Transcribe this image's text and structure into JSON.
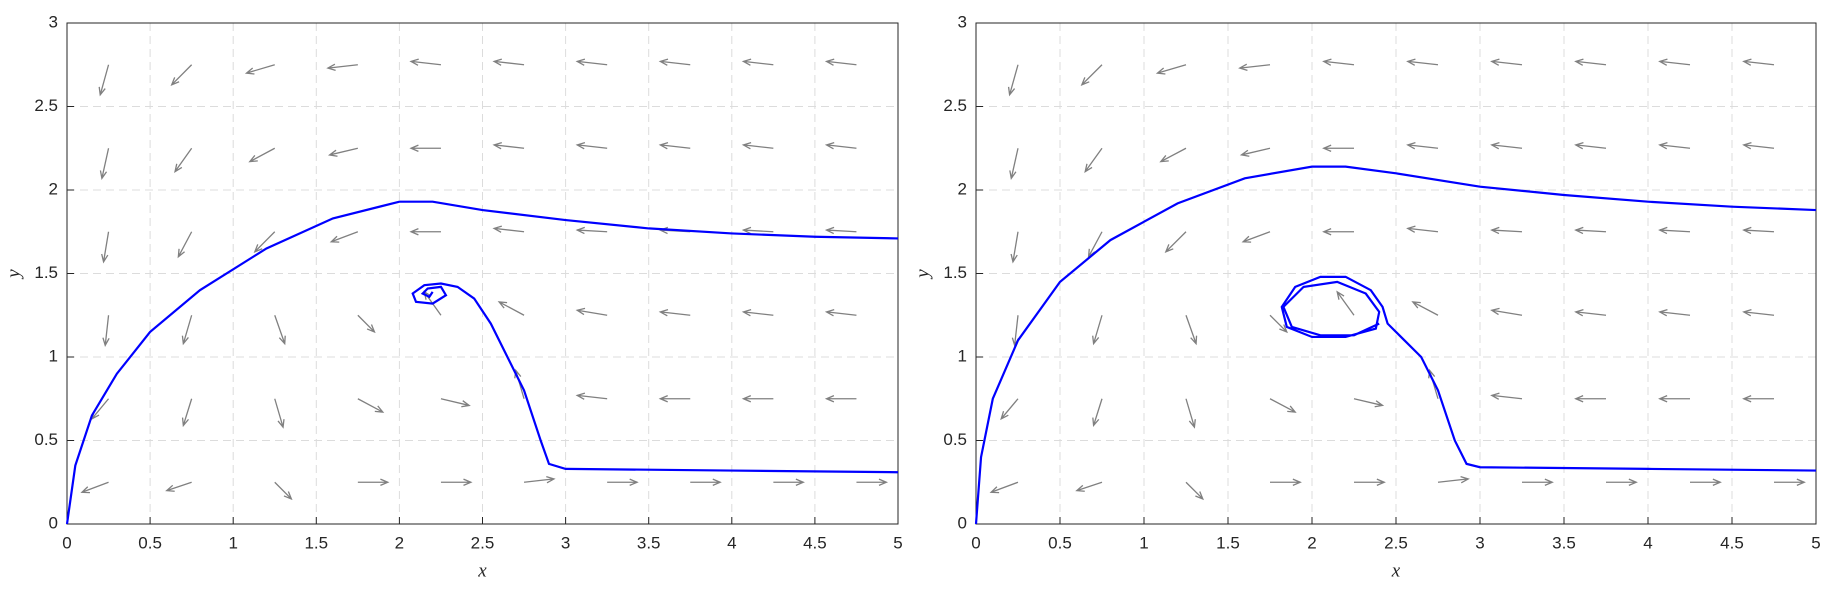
{
  "chart_data": [
    {
      "type": "quiver",
      "xlabel": "x",
      "ylabel": "y",
      "xlim": [
        0,
        5
      ],
      "ylim": [
        0,
        3
      ],
      "xticks": [
        0,
        0.5,
        1,
        1.5,
        2,
        2.5,
        3,
        3.5,
        4,
        4.5,
        5
      ],
      "yticks": [
        0,
        0.5,
        1,
        1.5,
        2,
        2.5,
        3
      ],
      "grid": true,
      "quiver": {
        "color": "#808080",
        "x": [
          0.25,
          0.75,
          1.25,
          1.75,
          2.25,
          2.75,
          3.25,
          3.75,
          4.25,
          4.75,
          0.25,
          0.75,
          1.25,
          1.75,
          2.25,
          2.75,
          3.25,
          3.75,
          4.25,
          4.75,
          0.25,
          0.75,
          1.25,
          1.75,
          2.25,
          2.75,
          3.25,
          3.75,
          4.25,
          4.75,
          0.25,
          0.75,
          1.25,
          1.75,
          2.25,
          2.75,
          3.25,
          3.75,
          4.25,
          4.75,
          0.25,
          0.75,
          1.25,
          1.75,
          2.25,
          2.75,
          3.25,
          3.75,
          4.25,
          4.75,
          0.25,
          0.75,
          1.25,
          1.75,
          2.25,
          2.75,
          3.25,
          3.75,
          4.25,
          4.75
        ],
        "y": [
          2.75,
          2.75,
          2.75,
          2.75,
          2.75,
          2.75,
          2.75,
          2.75,
          2.75,
          2.75,
          2.25,
          2.25,
          2.25,
          2.25,
          2.25,
          2.25,
          2.25,
          2.25,
          2.25,
          2.25,
          1.75,
          1.75,
          1.75,
          1.75,
          1.75,
          1.75,
          1.75,
          1.75,
          1.75,
          1.75,
          1.25,
          1.25,
          1.25,
          1.25,
          1.25,
          1.25,
          1.25,
          1.25,
          1.25,
          1.25,
          0.75,
          0.75,
          0.75,
          0.75,
          0.75,
          0.75,
          0.75,
          0.75,
          0.75,
          0.75,
          0.25,
          0.25,
          0.25,
          0.25,
          0.25,
          0.25,
          0.25,
          0.25,
          0.25,
          0.25
        ],
        "u": [
          -0.05,
          -0.12,
          -0.17,
          -0.18,
          -0.18,
          -0.18,
          -0.18,
          -0.18,
          -0.18,
          -0.18,
          -0.04,
          -0.1,
          -0.15,
          -0.17,
          -0.18,
          -0.18,
          -0.18,
          -0.18,
          -0.18,
          -0.18,
          -0.03,
          -0.08,
          -0.12,
          -0.16,
          -0.18,
          -0.18,
          -0.18,
          -0.18,
          -0.18,
          -0.18,
          -0.02,
          -0.05,
          0.06,
          0.1,
          -0.1,
          -0.15,
          -0.18,
          -0.18,
          -0.18,
          -0.18,
          -0.1,
          -0.05,
          0.05,
          0.15,
          0.17,
          -0.05,
          -0.18,
          -0.18,
          -0.18,
          -0.18,
          -0.16,
          -0.15,
          0.1,
          0.18,
          0.18,
          0.18,
          0.18,
          0.18,
          0.18,
          0.18
        ],
        "v": [
          -0.18,
          -0.12,
          -0.05,
          -0.02,
          0.02,
          0.02,
          0.02,
          0.02,
          0.02,
          0.02,
          -0.18,
          -0.14,
          -0.08,
          -0.04,
          0,
          0.02,
          0.02,
          0.02,
          0.02,
          0.02,
          -0.18,
          -0.15,
          -0.12,
          -0.06,
          0,
          0.02,
          0.01,
          0.01,
          0.01,
          0.01,
          -0.18,
          -0.17,
          -0.17,
          -0.1,
          0.14,
          0.08,
          0.03,
          0.02,
          0.02,
          0.02,
          -0.12,
          -0.16,
          -0.17,
          -0.08,
          -0.04,
          0.17,
          0.02,
          0,
          0,
          0,
          -0.06,
          -0.05,
          -0.1,
          0,
          0,
          0.02,
          0,
          0,
          0,
          0
        ]
      },
      "series": [
        {
          "color": "#0000ff",
          "x": [
            0,
            0.05,
            0.15,
            0.3,
            0.5,
            0.8,
            1.2,
            1.6,
            2.0,
            2.2,
            2.5,
            3,
            3.5,
            4,
            4.5,
            5
          ],
          "values": [
            0,
            0.35,
            0.65,
            0.9,
            1.15,
            1.4,
            1.65,
            1.83,
            1.93,
            1.93,
            1.88,
            1.82,
            1.77,
            1.74,
            1.72,
            1.71
          ]
        },
        {
          "color": "#0000ff",
          "x": [
            5,
            4,
            3,
            2.9,
            2.85,
            2.75,
            2.65,
            2.55,
            2.45,
            2.35,
            2.25,
            2.15,
            2.08,
            2.1,
            2.2,
            2.28,
            2.25,
            2.17,
            2.14,
            2.18,
            2.2
          ],
          "values": [
            0.31,
            0.32,
            0.33,
            0.36,
            0.5,
            0.8,
            1.0,
            1.2,
            1.35,
            1.42,
            1.44,
            1.43,
            1.38,
            1.33,
            1.32,
            1.37,
            1.42,
            1.41,
            1.38,
            1.36,
            1.39
          ]
        }
      ]
    },
    {
      "type": "quiver",
      "xlabel": "x",
      "ylabel": "y",
      "xlim": [
        0,
        5
      ],
      "ylim": [
        0,
        3
      ],
      "xticks": [
        0,
        0.5,
        1,
        1.5,
        2,
        2.5,
        3,
        3.5,
        4,
        4.5,
        5
      ],
      "yticks": [
        0,
        0.5,
        1,
        1.5,
        2,
        2.5,
        3
      ],
      "grid": true,
      "quiver": {
        "color": "#808080",
        "x": [
          0.25,
          0.75,
          1.25,
          1.75,
          2.25,
          2.75,
          3.25,
          3.75,
          4.25,
          4.75,
          0.25,
          0.75,
          1.25,
          1.75,
          2.25,
          2.75,
          3.25,
          3.75,
          4.25,
          4.75,
          0.25,
          0.75,
          1.25,
          1.75,
          2.25,
          2.75,
          3.25,
          3.75,
          4.25,
          4.75,
          0.25,
          0.75,
          1.25,
          1.75,
          2.25,
          2.75,
          3.25,
          3.75,
          4.25,
          4.75,
          0.25,
          0.75,
          1.25,
          1.75,
          2.25,
          2.75,
          3.25,
          3.75,
          4.25,
          4.75,
          0.25,
          0.75,
          1.25,
          1.75,
          2.25,
          2.75,
          3.25,
          3.75,
          4.25,
          4.75
        ],
        "y": [
          2.75,
          2.75,
          2.75,
          2.75,
          2.75,
          2.75,
          2.75,
          2.75,
          2.75,
          2.75,
          2.25,
          2.25,
          2.25,
          2.25,
          2.25,
          2.25,
          2.25,
          2.25,
          2.25,
          2.25,
          1.75,
          1.75,
          1.75,
          1.75,
          1.75,
          1.75,
          1.75,
          1.75,
          1.75,
          1.75,
          1.25,
          1.25,
          1.25,
          1.25,
          1.25,
          1.25,
          1.25,
          1.25,
          1.25,
          1.25,
          0.75,
          0.75,
          0.75,
          0.75,
          0.75,
          0.75,
          0.75,
          0.75,
          0.75,
          0.75,
          0.25,
          0.25,
          0.25,
          0.25,
          0.25,
          0.25,
          0.25,
          0.25,
          0.25,
          0.25
        ],
        "u": [
          -0.05,
          -0.12,
          -0.17,
          -0.18,
          -0.18,
          -0.18,
          -0.18,
          -0.18,
          -0.18,
          -0.18,
          -0.04,
          -0.1,
          -0.15,
          -0.17,
          -0.18,
          -0.18,
          -0.18,
          -0.18,
          -0.18,
          -0.18,
          -0.03,
          -0.08,
          -0.12,
          -0.16,
          -0.18,
          -0.18,
          -0.18,
          -0.18,
          -0.18,
          -0.18,
          -0.02,
          -0.05,
          0.06,
          0.1,
          -0.1,
          -0.15,
          -0.18,
          -0.18,
          -0.18,
          -0.18,
          -0.1,
          -0.05,
          0.05,
          0.15,
          0.17,
          -0.05,
          -0.18,
          -0.18,
          -0.18,
          -0.18,
          -0.16,
          -0.15,
          0.1,
          0.18,
          0.18,
          0.18,
          0.18,
          0.18,
          0.18,
          0.18
        ],
        "v": [
          -0.18,
          -0.12,
          -0.05,
          -0.02,
          0.02,
          0.02,
          0.02,
          0.02,
          0.02,
          0.02,
          -0.18,
          -0.14,
          -0.08,
          -0.04,
          0,
          0.02,
          0.02,
          0.02,
          0.02,
          0.02,
          -0.18,
          -0.15,
          -0.12,
          -0.06,
          0,
          0.02,
          0.01,
          0.01,
          0.01,
          0.01,
          -0.18,
          -0.17,
          -0.17,
          -0.1,
          0.14,
          0.08,
          0.03,
          0.02,
          0.02,
          0.02,
          -0.12,
          -0.16,
          -0.17,
          -0.08,
          -0.04,
          0.17,
          0.02,
          0,
          0,
          0,
          -0.06,
          -0.05,
          -0.1,
          0,
          0,
          0.02,
          0,
          0,
          0,
          0
        ]
      },
      "series": [
        {
          "color": "#0000ff",
          "x": [
            0,
            0.03,
            0.1,
            0.25,
            0.5,
            0.8,
            1.2,
            1.6,
            2.0,
            2.2,
            2.5,
            3,
            3.5,
            4,
            4.5,
            5
          ],
          "values": [
            0,
            0.4,
            0.75,
            1.1,
            1.45,
            1.7,
            1.92,
            2.07,
            2.14,
            2.14,
            2.1,
            2.02,
            1.97,
            1.93,
            1.9,
            1.88
          ]
        },
        {
          "color": "#0000ff",
          "x": [
            5,
            4,
            3,
            2.92,
            2.85,
            2.75,
            2.65,
            2.55,
            2.45,
            2.42,
            2.35,
            2.2,
            2.05,
            1.9,
            1.82,
            1.85,
            2.0,
            2.2,
            2.38,
            2.4,
            2.32,
            2.15,
            1.95,
            1.83,
            1.88,
            2.05,
            2.25,
            2.4
          ],
          "values": [
            0.32,
            0.33,
            0.34,
            0.36,
            0.5,
            0.8,
            1.0,
            1.1,
            1.2,
            1.3,
            1.4,
            1.48,
            1.48,
            1.42,
            1.3,
            1.18,
            1.12,
            1.12,
            1.17,
            1.27,
            1.38,
            1.45,
            1.42,
            1.3,
            1.18,
            1.13,
            1.13,
            1.2
          ]
        }
      ]
    }
  ]
}
